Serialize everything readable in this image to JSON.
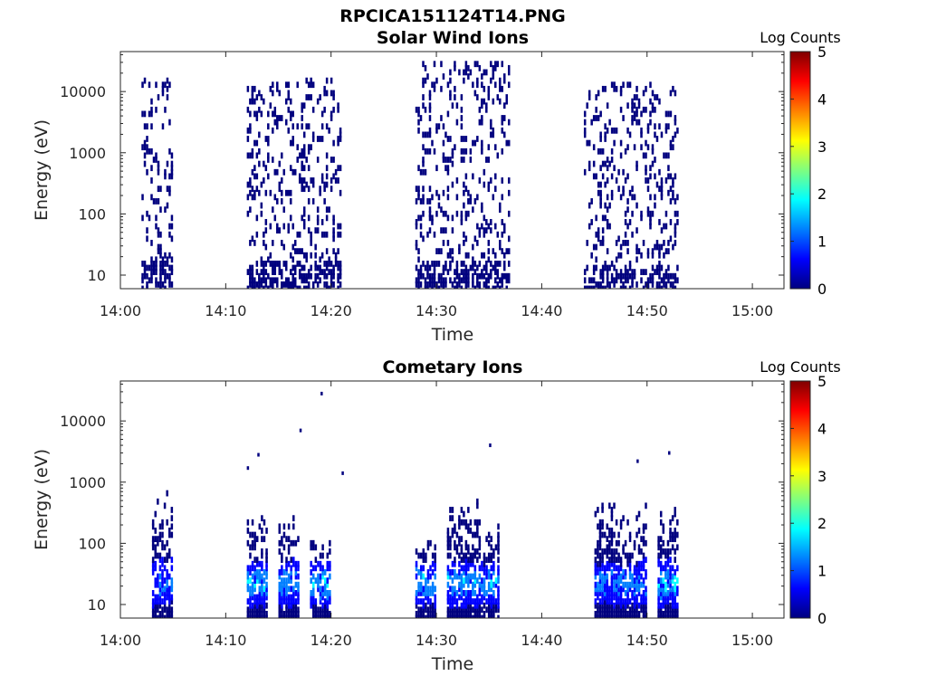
{
  "figure_title": "RPCICA151124T14.PNG",
  "colors": {
    "colormap": [
      "#00007f",
      "#0000ff",
      "#007fff",
      "#00ffff",
      "#7fff7f",
      "#ffff00",
      "#ff7f00",
      "#ff0000",
      "#7f0000"
    ],
    "axes": "#262626"
  },
  "chart_data": [
    {
      "type": "heatmap",
      "title": "Solar Wind Ions",
      "xlabel": "Time",
      "ylabel": "Energy (eV)",
      "x_ticks": [
        "14:00",
        "14:10",
        "14:20",
        "14:30",
        "14:40",
        "14:50",
        "15:00"
      ],
      "y_ticks": [
        "10",
        "100",
        "1000",
        "10000"
      ],
      "y_scale": "log",
      "colorbar": {
        "label": "Log Counts",
        "ticks": [
          "0",
          "1",
          "2",
          "3",
          "4",
          "5"
        ],
        "range": [
          0,
          5
        ]
      },
      "xlim_minutes": [
        0,
        63
      ],
      "ylim": [
        6,
        45000
      ],
      "bursts": [
        {
          "start": "14:02",
          "end": "14:05",
          "energy_range": [
            6,
            20000
          ],
          "log_counts": 0.1
        },
        {
          "start": "14:12",
          "end": "14:21",
          "energy_range": [
            6,
            16000
          ],
          "log_counts": 0.1
        },
        {
          "start": "14:28",
          "end": "14:37",
          "energy_range": [
            6,
            30000
          ],
          "log_counts": 0.1
        },
        {
          "start": "14:44",
          "end": "14:53",
          "energy_range": [
            6,
            13000
          ],
          "log_counts": 0.1
        }
      ]
    },
    {
      "type": "heatmap",
      "title": "Cometary Ions",
      "xlabel": "Time",
      "ylabel": "Energy (eV)",
      "x_ticks": [
        "14:00",
        "14:10",
        "14:20",
        "14:30",
        "14:40",
        "14:50",
        "15:00"
      ],
      "y_ticks": [
        "10",
        "100",
        "1000",
        "10000"
      ],
      "y_scale": "log",
      "colorbar": {
        "label": "Log Counts",
        "ticks": [
          "0",
          "1",
          "2",
          "3",
          "4",
          "5"
        ],
        "range": [
          0,
          5
        ]
      },
      "xlim_minutes": [
        0,
        63
      ],
      "ylim": [
        6,
        45000
      ],
      "bursts": [
        {
          "start": "14:03",
          "end": "14:05",
          "energy_range": [
            6,
            700
          ],
          "peak_log_counts": 1.5
        },
        {
          "start": "14:12",
          "end": "14:14",
          "energy_range": [
            6,
            300
          ],
          "peak_log_counts": 1.8
        },
        {
          "start": "14:15",
          "end": "14:17",
          "energy_range": [
            6,
            300
          ],
          "peak_log_counts": 1.6
        },
        {
          "start": "14:18",
          "end": "14:20",
          "energy_range": [
            6,
            150
          ],
          "peak_log_counts": 1.8
        },
        {
          "start": "14:28",
          "end": "14:30",
          "energy_range": [
            6,
            150
          ],
          "peak_log_counts": 1.9
        },
        {
          "start": "14:31",
          "end": "14:34",
          "energy_range": [
            6,
            600
          ],
          "peak_log_counts": 1.8
        },
        {
          "start": "14:34",
          "end": "14:36",
          "energy_range": [
            6,
            300
          ],
          "peak_log_counts": 1.6
        },
        {
          "start": "14:45",
          "end": "14:47",
          "energy_range": [
            6,
            600
          ],
          "peak_log_counts": 1.4
        },
        {
          "start": "14:47",
          "end": "14:50",
          "energy_range": [
            6,
            500
          ],
          "peak_log_counts": 1.5
        },
        {
          "start": "14:51",
          "end": "14:53",
          "energy_range": [
            6,
            500
          ],
          "peak_log_counts": 1.8
        }
      ],
      "isolated_points": [
        {
          "time": "14:19",
          "energy": 28000
        },
        {
          "time": "14:17",
          "energy": 7000
        },
        {
          "time": "14:13",
          "energy": 2800
        },
        {
          "time": "14:12",
          "energy": 1700
        },
        {
          "time": "14:21",
          "energy": 1400
        },
        {
          "time": "14:35",
          "energy": 4000
        },
        {
          "time": "14:49",
          "energy": 2200
        },
        {
          "time": "14:52",
          "energy": 3000
        }
      ]
    }
  ]
}
